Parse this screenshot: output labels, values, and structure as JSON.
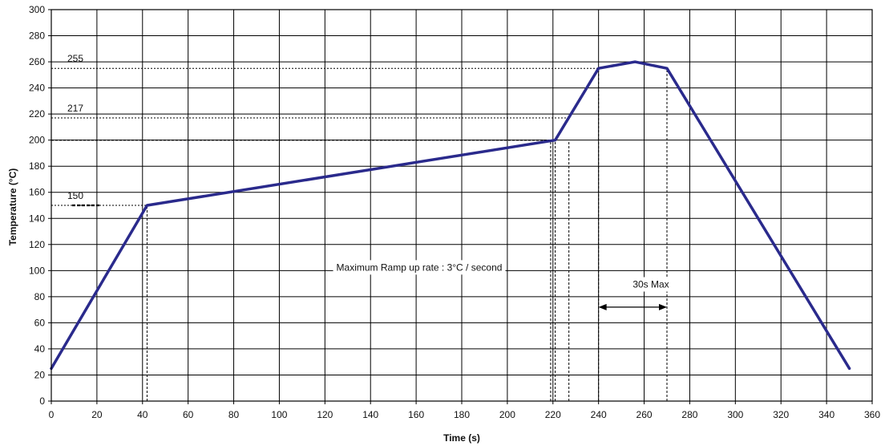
{
  "chart_data": {
    "type": "line",
    "title": "",
    "xlabel": "Time (s)",
    "ylabel": "Temperature (°C)",
    "xlim": [
      0,
      360
    ],
    "ylim": [
      0,
      300
    ],
    "x_ticks": [
      "0",
      "20",
      "40",
      "60",
      "80",
      "100",
      "120",
      "140",
      "160",
      "180",
      "200",
      "220",
      "240",
      "260",
      "280",
      "300",
      "320",
      "340",
      "360"
    ],
    "y_ticks": [
      "0",
      "20",
      "40",
      "60",
      "80",
      "100",
      "120",
      "140",
      "160",
      "180",
      "200",
      "220",
      "240",
      "260",
      "280",
      "300"
    ],
    "grid": true,
    "series": [
      {
        "name": "",
        "color": "#2a2a8c",
        "x": [
          0,
          42,
          221,
          240,
          256,
          270,
          350
        ],
        "y": [
          25,
          150,
          200,
          255,
          260,
          255,
          25
        ]
      }
    ],
    "reference_lines": {
      "horizontal": [
        {
          "y": 255,
          "label": "255",
          "x_end": 240
        },
        {
          "y": 217,
          "label": "217",
          "x_end": 227
        },
        {
          "y": 200,
          "label": "",
          "x_end": 221
        },
        {
          "y": 150,
          "label": "150",
          "x_end": 42
        }
      ],
      "vertical": [
        42,
        219,
        221,
        227,
        240,
        270
      ]
    },
    "annotations": [
      {
        "text": "Maximum Ramp up rate : 3°C / second",
        "x": 125,
        "y": 100
      },
      {
        "text": "30s Max",
        "x": 255,
        "y": 87
      }
    ],
    "span_arrow": {
      "x_start": 240,
      "x_end": 270,
      "y": 72
    }
  }
}
